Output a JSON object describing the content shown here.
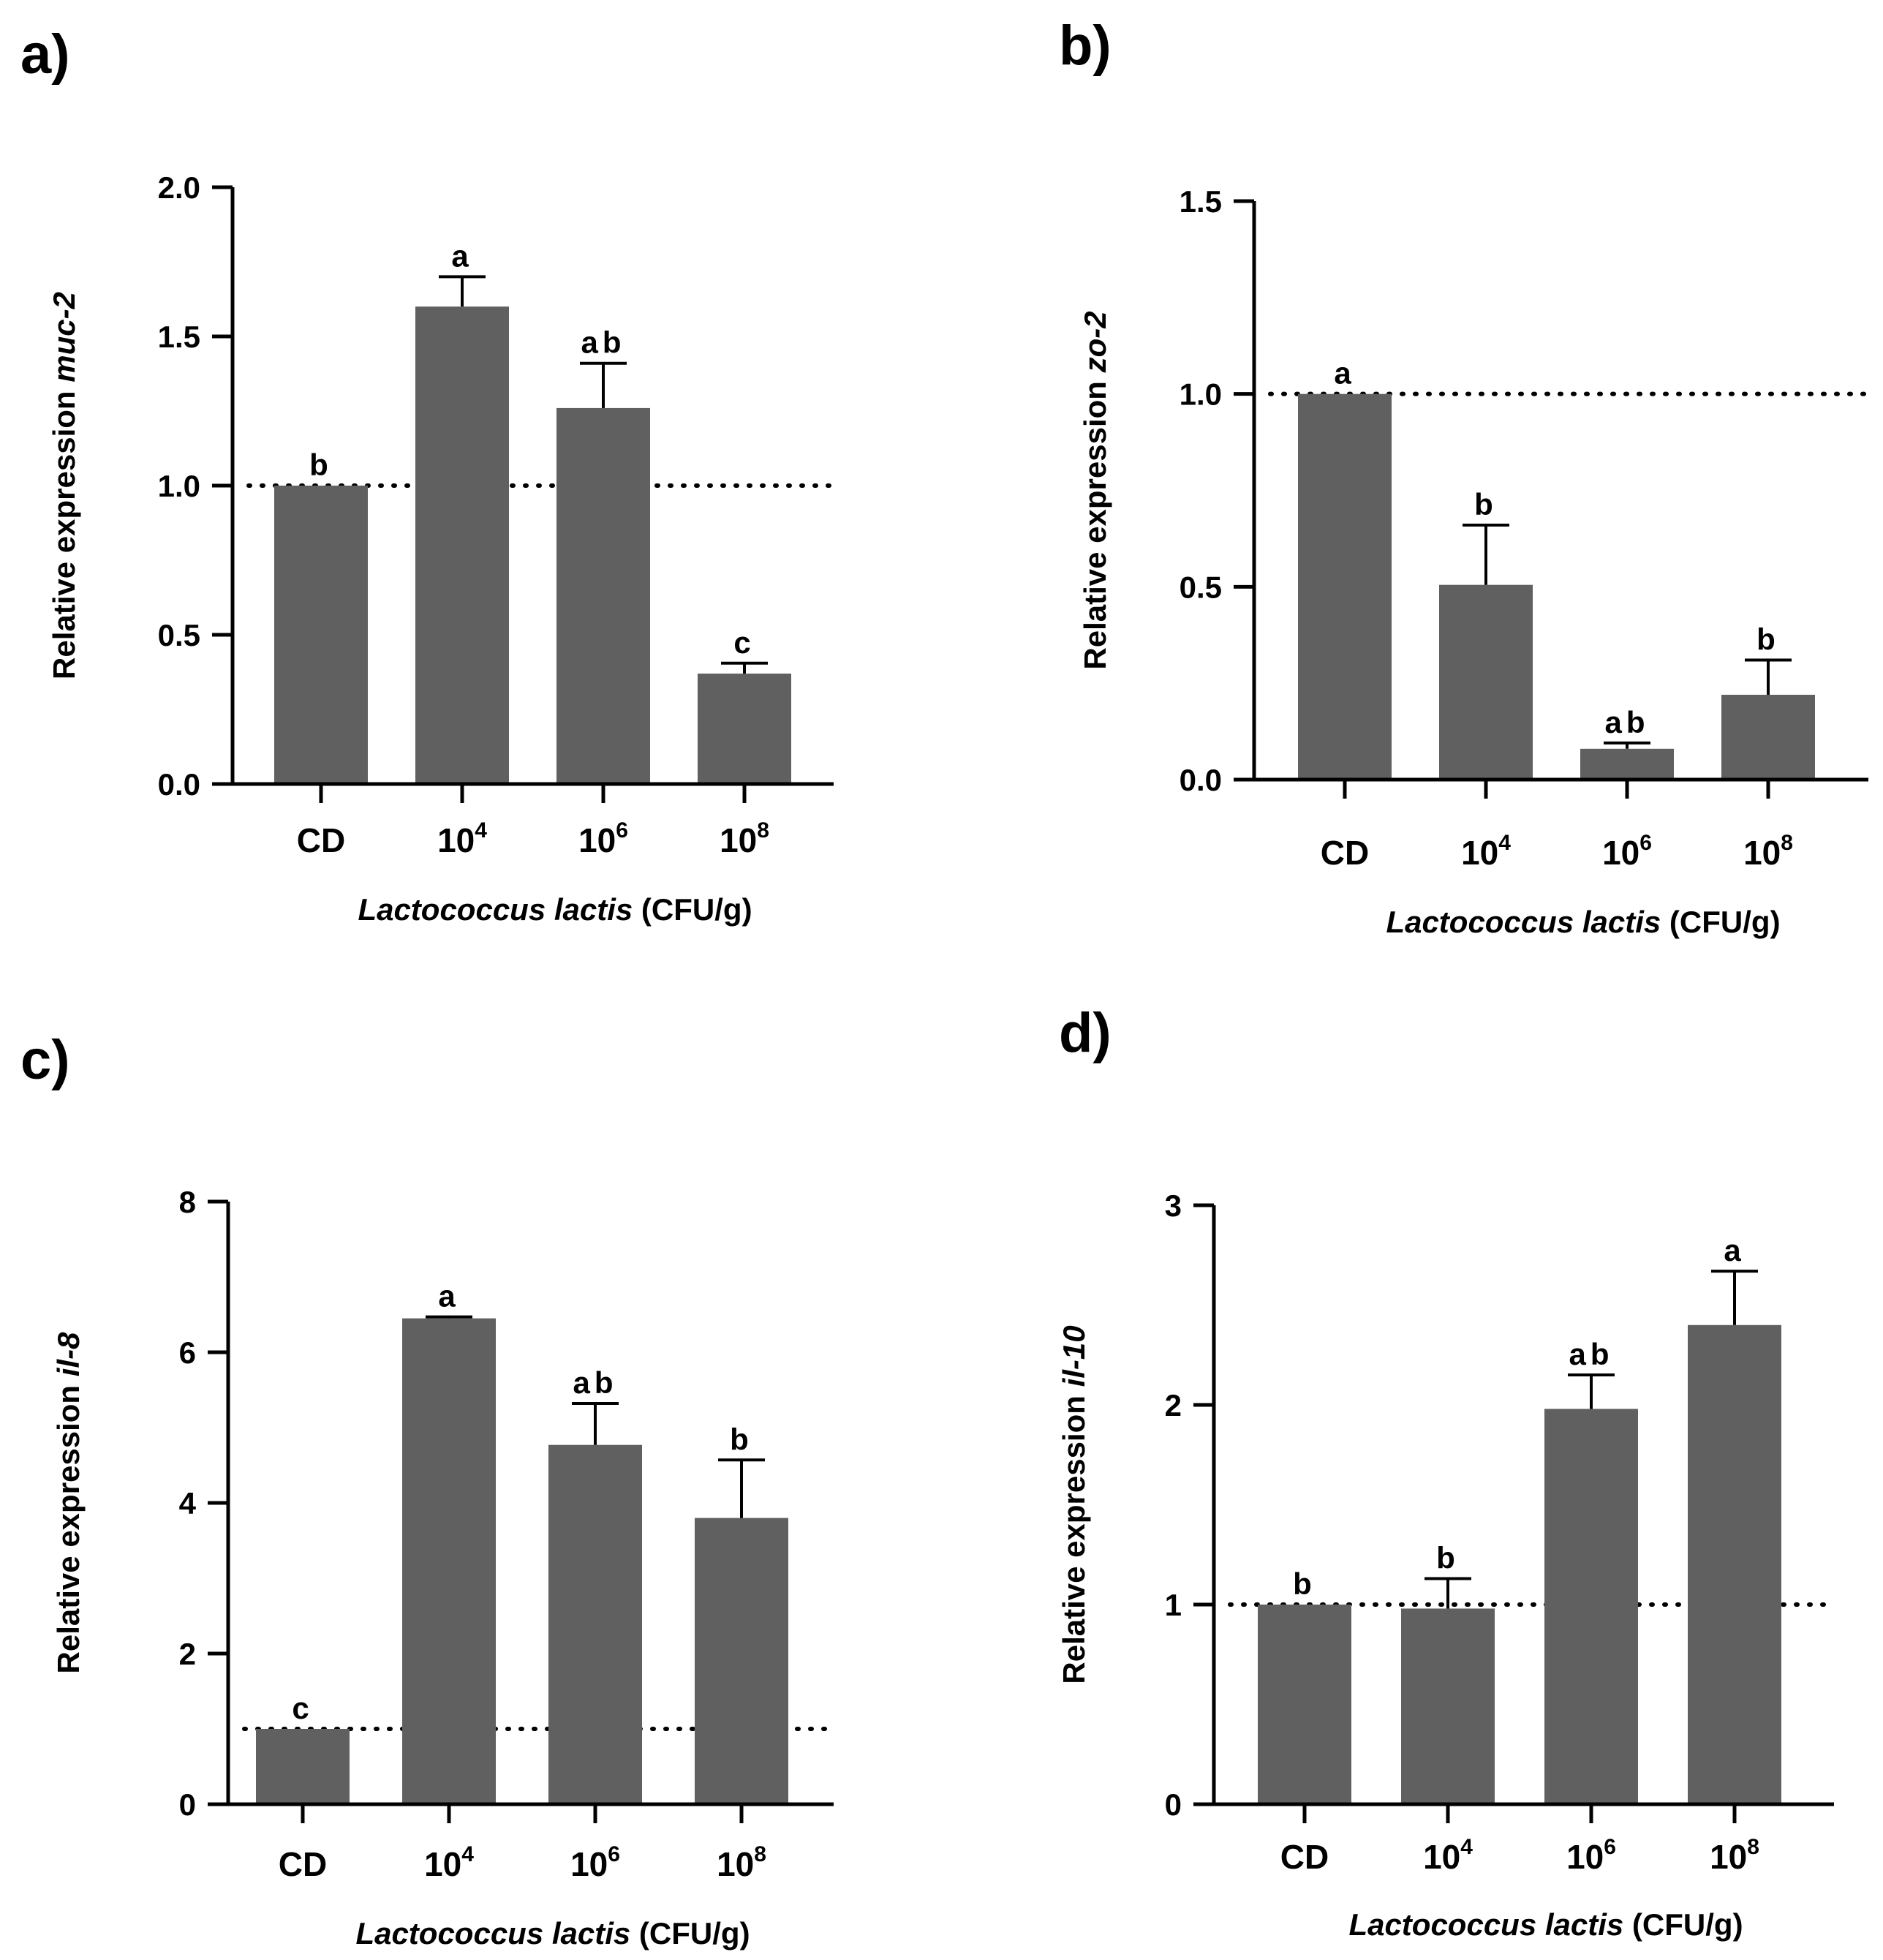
{
  "colors": {
    "bar": "#606060",
    "axis": "#000000",
    "reference_line": "#000000"
  },
  "chart_data": [
    {
      "type": "bar",
      "panel_label": "a)",
      "categories": [
        "CD",
        "10",
        "10",
        "10"
      ],
      "category_superscripts": [
        "",
        "4",
        "6",
        "8"
      ],
      "values": [
        1.0,
        1.6,
        1.26,
        0.37
      ],
      "errors": [
        0.0,
        0.1,
        0.15,
        0.035
      ],
      "significance": [
        "b",
        "a",
        "ab",
        "c"
      ],
      "ylim": [
        0,
        2.0
      ],
      "yticks": [
        0.0,
        0.5,
        1.0,
        1.5,
        2.0
      ],
      "ytick_labels": [
        "0.0",
        "0.5",
        "1.0",
        "1.5",
        "2.0"
      ],
      "ylabel_prefix": "Relative expression ",
      "ylabel_gene": "muc-2",
      "xlabel_species": "Lactococcus lactis",
      "xlabel_unit": " (CFU/g)",
      "reference_line": 1.0
    },
    {
      "type": "bar",
      "panel_label": "b)",
      "categories": [
        "CD",
        "10",
        "10",
        "10"
      ],
      "category_superscripts": [
        "",
        "4",
        "6",
        "8"
      ],
      "values": [
        1.0,
        0.505,
        0.08,
        0.22
      ],
      "errors": [
        0.0,
        0.155,
        0.015,
        0.09
      ],
      "significance": [
        "a",
        "b",
        "ab",
        "b"
      ],
      "ylim": [
        0,
        1.5
      ],
      "yticks": [
        0.0,
        0.5,
        1.0,
        1.5
      ],
      "ytick_labels": [
        "0.0",
        "0.5",
        "1.0",
        "1.5"
      ],
      "ylabel_prefix": "Relative expression ",
      "ylabel_gene": "zo-2",
      "xlabel_species": "Lactococcus lactis",
      "xlabel_unit": " (CFU/g)",
      "reference_line": 1.0
    },
    {
      "type": "bar",
      "panel_label": "c)",
      "categories": [
        "CD",
        "10",
        "10",
        "10"
      ],
      "category_superscripts": [
        "",
        "4",
        "6",
        "8"
      ],
      "values": [
        1.0,
        6.45,
        4.77,
        3.8
      ],
      "errors": [
        0.0,
        0.02,
        0.55,
        0.77
      ],
      "significance": [
        "c",
        "a",
        "ab",
        "b"
      ],
      "ylim": [
        0,
        8
      ],
      "yticks": [
        0,
        2,
        4,
        6,
        8
      ],
      "ytick_labels": [
        "0",
        "2",
        "4",
        "6",
        "8"
      ],
      "ylabel_prefix": "Relative expression ",
      "ylabel_gene": "il-8",
      "xlabel_species": "Lactococcus lactis",
      "xlabel_unit": " (CFU/g)",
      "reference_line": 1.0
    },
    {
      "type": "bar",
      "panel_label": "d)",
      "categories": [
        "CD",
        "10",
        "10",
        "10"
      ],
      "category_superscripts": [
        "",
        "4",
        "6",
        "8"
      ],
      "values": [
        1.0,
        0.98,
        1.98,
        2.4
      ],
      "errors": [
        0.0,
        0.15,
        0.17,
        0.27
      ],
      "significance": [
        "b",
        "b",
        "ab",
        "a"
      ],
      "ylim": [
        0,
        3
      ],
      "yticks": [
        0,
        1,
        2,
        3
      ],
      "ytick_labels": [
        "0",
        "1",
        "2",
        "3"
      ],
      "ylabel_prefix": "Relative expression ",
      "ylabel_gene": "il-10",
      "xlabel_species": "Lactococcus lactis",
      "xlabel_unit": " (CFU/g)",
      "reference_line": 1.0
    }
  ]
}
